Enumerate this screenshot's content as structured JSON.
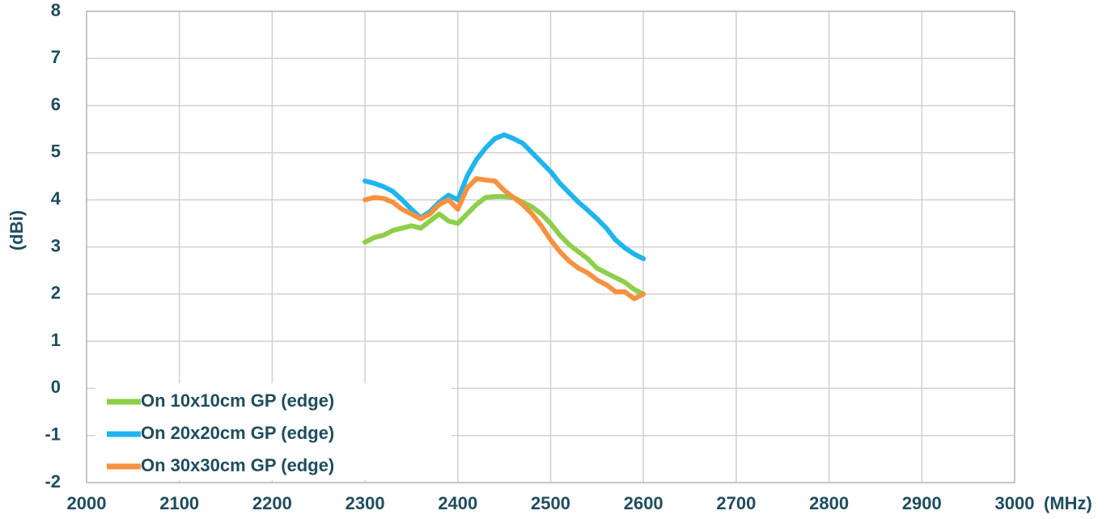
{
  "chart_data": {
    "type": "line",
    "x_label": "(MHz)",
    "y_label": "(dBi)",
    "x": [
      2300,
      2310,
      2320,
      2330,
      2340,
      2350,
      2360,
      2370,
      2380,
      2390,
      2400,
      2410,
      2420,
      2430,
      2440,
      2450,
      2460,
      2470,
      2480,
      2490,
      2500,
      2510,
      2520,
      2530,
      2540,
      2550,
      2560,
      2570,
      2580,
      2590,
      2600
    ],
    "series": [
      {
        "name": "On 10x10cm GP (edge)",
        "color": "#8dcf4a",
        "values": [
          3.1,
          3.2,
          3.25,
          3.35,
          3.4,
          3.45,
          3.4,
          3.55,
          3.7,
          3.55,
          3.5,
          3.7,
          3.9,
          4.05,
          4.07,
          4.07,
          4.05,
          3.95,
          3.85,
          3.7,
          3.5,
          3.25,
          3.05,
          2.9,
          2.75,
          2.55,
          2.45,
          2.35,
          2.25,
          2.1,
          2.0
        ]
      },
      {
        "name": "On 20x20cm GP (edge)",
        "color": "#1fb4ee",
        "values": [
          4.4,
          4.35,
          4.28,
          4.18,
          4.0,
          3.8,
          3.62,
          3.75,
          3.95,
          4.1,
          4.0,
          4.5,
          4.85,
          5.1,
          5.3,
          5.38,
          5.3,
          5.2,
          5.0,
          4.8,
          4.6,
          4.35,
          4.15,
          3.95,
          3.78,
          3.6,
          3.4,
          3.15,
          2.98,
          2.85,
          2.75
        ]
      },
      {
        "name": "On 30x30cm GP (edge)",
        "color": "#f7913f",
        "values": [
          4.0,
          4.05,
          4.03,
          3.95,
          3.8,
          3.7,
          3.6,
          3.7,
          3.9,
          4.0,
          3.8,
          4.25,
          4.45,
          4.42,
          4.4,
          4.2,
          4.05,
          3.9,
          3.7,
          3.45,
          3.15,
          2.9,
          2.7,
          2.55,
          2.45,
          2.3,
          2.2,
          2.05,
          2.05,
          1.9,
          2.0
        ]
      }
    ],
    "xlim": [
      2000,
      3000
    ],
    "xticks": [
      2000,
      2100,
      2200,
      2300,
      2400,
      2500,
      2600,
      2700,
      2800,
      2900,
      3000
    ],
    "ylim": [
      -2,
      8
    ],
    "yticks": [
      -2,
      -1,
      0,
      1,
      2,
      3,
      4,
      5,
      6,
      7,
      8
    ],
    "grid": true,
    "legend": "lower left"
  }
}
